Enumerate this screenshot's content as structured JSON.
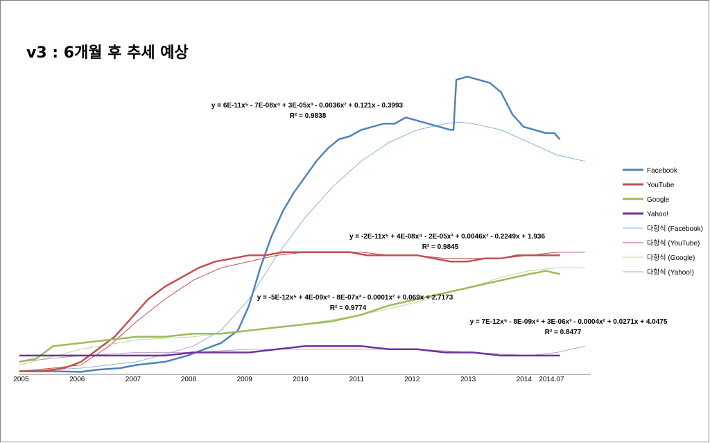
{
  "title": "v3 : 6개월 후 추세 예상",
  "chart_data": {
    "type": "line",
    "x_ticks": [
      "2005",
      "2006",
      "2007",
      "2008",
      "2009",
      "2010",
      "2011",
      "2012",
      "2013",
      "2014",
      "2014.07"
    ],
    "x_range": [
      2004.9,
      2015.1
    ],
    "y_range": [
      0,
      100
    ],
    "grid": false,
    "legend_position": "right",
    "series": [
      {
        "name": "Facebook",
        "color": "#4f81bd",
        "points": [
          [
            2004.9,
            1
          ],
          [
            2005.5,
            1
          ],
          [
            2006.0,
            0.8
          ],
          [
            2006.3,
            1.5
          ],
          [
            2006.7,
            2
          ],
          [
            2007.0,
            3
          ],
          [
            2007.5,
            4
          ],
          [
            2007.9,
            6
          ],
          [
            2008.2,
            8
          ],
          [
            2008.5,
            10
          ],
          [
            2008.8,
            14
          ],
          [
            2009.0,
            22
          ],
          [
            2009.2,
            34
          ],
          [
            2009.4,
            44
          ],
          [
            2009.6,
            52
          ],
          [
            2009.8,
            58
          ],
          [
            2010.0,
            63
          ],
          [
            2010.2,
            68
          ],
          [
            2010.4,
            72
          ],
          [
            2010.6,
            75
          ],
          [
            2010.8,
            76
          ],
          [
            2011.0,
            78
          ],
          [
            2011.2,
            79
          ],
          [
            2011.4,
            80
          ],
          [
            2011.6,
            80
          ],
          [
            2011.8,
            82
          ],
          [
            2012.0,
            81
          ],
          [
            2012.2,
            80
          ],
          [
            2012.4,
            79
          ],
          [
            2012.6,
            78
          ],
          [
            2012.65,
            78
          ],
          [
            2012.7,
            94
          ],
          [
            2012.9,
            95
          ],
          [
            2013.1,
            94
          ],
          [
            2013.3,
            93
          ],
          [
            2013.5,
            90
          ],
          [
            2013.7,
            83
          ],
          [
            2013.9,
            79
          ],
          [
            2014.1,
            78
          ],
          [
            2014.3,
            77
          ],
          [
            2014.45,
            77
          ],
          [
            2014.55,
            75
          ]
        ]
      },
      {
        "name": "YouTube",
        "color": "#c0504d",
        "points": [
          [
            2004.9,
            1
          ],
          [
            2005.3,
            1
          ],
          [
            2005.7,
            2
          ],
          [
            2006.0,
            4
          ],
          [
            2006.3,
            8
          ],
          [
            2006.6,
            12
          ],
          [
            2006.9,
            18
          ],
          [
            2007.2,
            24
          ],
          [
            2007.5,
            28
          ],
          [
            2007.8,
            31
          ],
          [
            2008.1,
            34
          ],
          [
            2008.4,
            36
          ],
          [
            2008.7,
            37
          ],
          [
            2009.0,
            38
          ],
          [
            2009.3,
            38
          ],
          [
            2009.6,
            39
          ],
          [
            2009.9,
            39
          ],
          [
            2010.2,
            39
          ],
          [
            2010.5,
            39
          ],
          [
            2010.8,
            39
          ],
          [
            2011.1,
            38
          ],
          [
            2011.4,
            38
          ],
          [
            2011.7,
            38
          ],
          [
            2012.0,
            38
          ],
          [
            2012.3,
            37
          ],
          [
            2012.6,
            36
          ],
          [
            2012.9,
            36
          ],
          [
            2013.2,
            37
          ],
          [
            2013.5,
            37
          ],
          [
            2013.8,
            38
          ],
          [
            2014.1,
            38
          ],
          [
            2014.4,
            38
          ],
          [
            2014.55,
            38
          ]
        ]
      },
      {
        "name": "Google",
        "color": "#9bbb59",
        "points": [
          [
            2004.9,
            4
          ],
          [
            2005.2,
            5
          ],
          [
            2005.5,
            9
          ],
          [
            2006.0,
            10
          ],
          [
            2006.5,
            11
          ],
          [
            2007.0,
            12
          ],
          [
            2007.5,
            12
          ],
          [
            2008.0,
            13
          ],
          [
            2008.5,
            13
          ],
          [
            2009.0,
            14
          ],
          [
            2009.5,
            15
          ],
          [
            2010.0,
            16
          ],
          [
            2010.5,
            17
          ],
          [
            2011.0,
            19
          ],
          [
            2011.5,
            22
          ],
          [
            2012.0,
            24
          ],
          [
            2012.5,
            26
          ],
          [
            2013.0,
            28
          ],
          [
            2013.5,
            30
          ],
          [
            2014.0,
            32
          ],
          [
            2014.3,
            33
          ],
          [
            2014.55,
            32
          ]
        ]
      },
      {
        "name": "Yahoo!",
        "color": "#7030a0",
        "points": [
          [
            2004.9,
            6
          ],
          [
            2005.5,
            6
          ],
          [
            2006.0,
            6
          ],
          [
            2006.5,
            6
          ],
          [
            2007.0,
            6
          ],
          [
            2007.5,
            6
          ],
          [
            2008.0,
            7
          ],
          [
            2008.5,
            7
          ],
          [
            2009.0,
            7
          ],
          [
            2009.5,
            8
          ],
          [
            2010.0,
            9
          ],
          [
            2010.5,
            9
          ],
          [
            2011.0,
            9
          ],
          [
            2011.5,
            8
          ],
          [
            2012.0,
            8
          ],
          [
            2012.5,
            7
          ],
          [
            2013.0,
            7
          ],
          [
            2013.5,
            6
          ],
          [
            2014.0,
            6
          ],
          [
            2014.3,
            6
          ],
          [
            2014.55,
            6
          ]
        ]
      }
    ],
    "trendlines": [
      {
        "name": "다항식 (Facebook)",
        "color": "#8db3e2",
        "equation": "y = 6E-11x⁵ - 7E-08x⁴ + 3E-05x³ - 0.0036x² + 0.121x - 0.3993",
        "r2": "R² = 0.9838",
        "points": [
          [
            2004.9,
            1
          ],
          [
            2006.0,
            2
          ],
          [
            2007.0,
            4
          ],
          [
            2008.0,
            9
          ],
          [
            2008.5,
            14
          ],
          [
            2009.0,
            24
          ],
          [
            2009.5,
            38
          ],
          [
            2010.0,
            50
          ],
          [
            2010.5,
            60
          ],
          [
            2011.0,
            68
          ],
          [
            2011.5,
            74
          ],
          [
            2012.0,
            78
          ],
          [
            2012.5,
            80
          ],
          [
            2012.75,
            80.5
          ],
          [
            2013.0,
            80
          ],
          [
            2013.5,
            78
          ],
          [
            2014.0,
            74
          ],
          [
            2014.5,
            70
          ],
          [
            2015.0,
            68
          ]
        ]
      },
      {
        "name": "다항식 (YouTube)",
        "color": "#c0504d",
        "equation": "y = -2E-11x⁵ + 4E-08x⁴ - 2E-05x³ + 0.0046x² - 0.2249x + 1.936",
        "r2": "R² = 0.9845",
        "points": [
          [
            2004.9,
            1
          ],
          [
            2005.5,
            2
          ],
          [
            2006.0,
            3
          ],
          [
            2006.5,
            9
          ],
          [
            2007.0,
            17
          ],
          [
            2007.5,
            24
          ],
          [
            2008.0,
            30
          ],
          [
            2008.5,
            34
          ],
          [
            2009.0,
            36
          ],
          [
            2009.5,
            38
          ],
          [
            2010.0,
            39
          ],
          [
            2010.5,
            39
          ],
          [
            2011.0,
            39
          ],
          [
            2011.5,
            38
          ],
          [
            2012.0,
            38
          ],
          [
            2012.5,
            37
          ],
          [
            2013.0,
            37
          ],
          [
            2013.5,
            37
          ],
          [
            2014.0,
            38
          ],
          [
            2014.5,
            39
          ],
          [
            2015.0,
            39
          ]
        ]
      },
      {
        "name": "다항식 (Google)",
        "color": "#c3d69b",
        "equation": "y = -5E-12x⁵ + 4E-09x⁴ - 8E-07x³ - 0.0001x² + 0.069x + 2.7173",
        "r2": "R² = 0.9774",
        "points": [
          [
            2004.9,
            3
          ],
          [
            2006.0,
            8
          ],
          [
            2007.0,
            11
          ],
          [
            2008.0,
            12
          ],
          [
            2009.0,
            14
          ],
          [
            2010.0,
            16
          ],
          [
            2011.0,
            19
          ],
          [
            2012.0,
            23
          ],
          [
            2012.5,
            26
          ],
          [
            2013.0,
            28
          ],
          [
            2013.5,
            31
          ],
          [
            2014.0,
            33
          ],
          [
            2014.5,
            34
          ],
          [
            2015.0,
            34
          ]
        ]
      },
      {
        "name": "다항식 (Yahoo!)",
        "color": "#b3a2c7",
        "equation": "y = 7E-12x⁵ - 8E-09x⁴ + 3E-06x³ - 0.0004x² + 0.0271x + 4.0475",
        "r2": "R² = 0.8477",
        "points": [
          [
            2004.9,
            4
          ],
          [
            2006.0,
            6
          ],
          [
            2007.0,
            7
          ],
          [
            2008.0,
            7
          ],
          [
            2009.0,
            8
          ],
          [
            2010.0,
            8
          ],
          [
            2011.0,
            8
          ],
          [
            2012.0,
            8
          ],
          [
            2013.0,
            7
          ],
          [
            2014.0,
            6
          ],
          [
            2014.5,
            7
          ],
          [
            2015.0,
            9
          ]
        ]
      }
    ],
    "legend": [
      "Facebook",
      "YouTube",
      "Google",
      "Yahoo!",
      "다항식 (Facebook)",
      "다항식 (YouTube)",
      "다항식 (Google)",
      "다항식 (Yahoo!)"
    ]
  }
}
